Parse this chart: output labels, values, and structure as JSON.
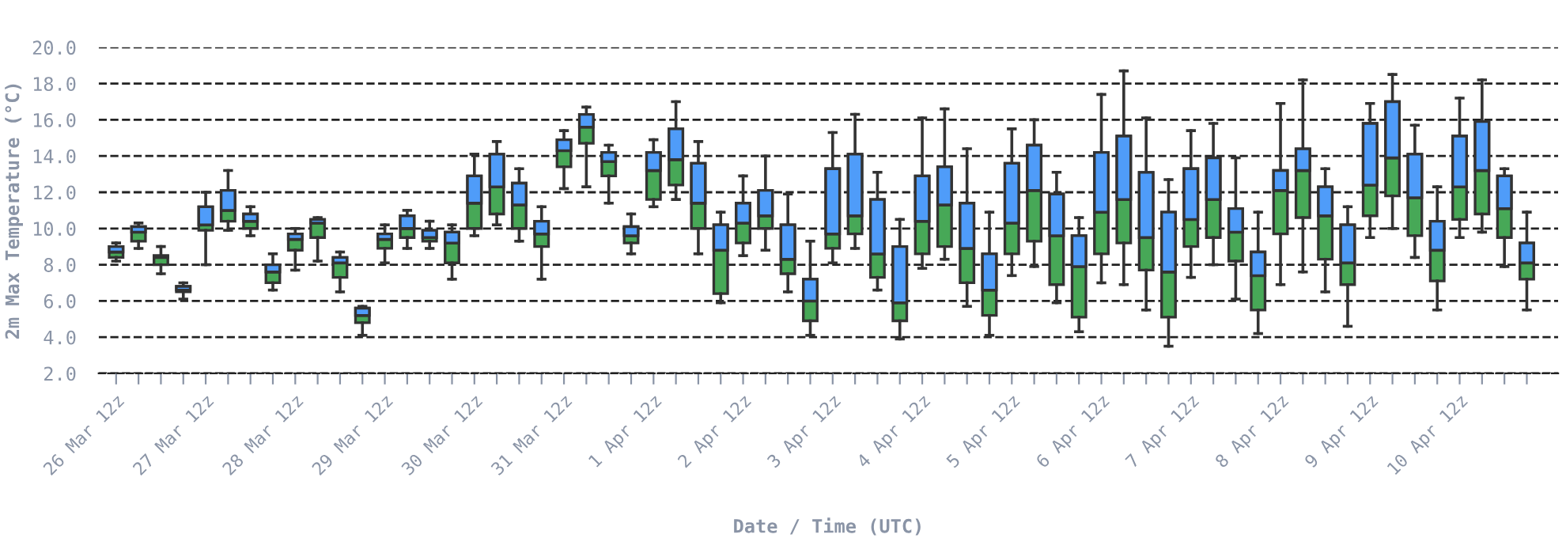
{
  "chart_data": {
    "type": "box",
    "xlabel": "Date / Time (UTC)",
    "ylabel": "2m Max Temperature (°C)",
    "categories": [
      "26 Mar 12z",
      null,
      null,
      null,
      "27 Mar 12z",
      null,
      null,
      null,
      "28 Mar 12z",
      null,
      null,
      null,
      "29 Mar 12z",
      null,
      null,
      null,
      "30 Mar 12z",
      null,
      null,
      null,
      "31 Mar 12z",
      null,
      null,
      null,
      "1 Apr 12z",
      null,
      null,
      null,
      "2 Apr 12z",
      null,
      null,
      null,
      "3 Apr 12z",
      null,
      null,
      null,
      "4 Apr 12z",
      null,
      null,
      null,
      "5 Apr 12z",
      null,
      null,
      null,
      "6 Apr 12z",
      null,
      null,
      null,
      "7 Apr 12z",
      null,
      null,
      null,
      "8 Apr 12z",
      null,
      null,
      null,
      "9 Apr 12z",
      null,
      null,
      null,
      "10 Apr 12z",
      null,
      null,
      null
    ],
    "colors": [
      [
        "#47a857",
        "#4f9cf9"
      ],
      [
        "#47a857",
        "#4f9cf9"
      ],
      [
        "#47a857",
        "#4f9cf9"
      ],
      [
        "#47a857",
        "#4f9cf9"
      ],
      [
        "#47a857",
        "#4f9cf9"
      ],
      [
        "#47a857",
        "#4f9cf9"
      ],
      [
        "#47a857",
        "#4f9cf9"
      ],
      [
        "#47a857",
        "#4f9cf9"
      ],
      [
        "#47a857",
        "#4f9cf9"
      ],
      [
        "#47a857",
        "#4f9cf9"
      ],
      [
        "#47a857",
        "#4f9cf9"
      ],
      [
        "#47a857",
        "#4f9cf9"
      ],
      [
        "#47a857",
        "#4f9cf9"
      ],
      [
        "#47a857",
        "#4f9cf9"
      ],
      [
        "#47a857",
        "#4f9cf9"
      ],
      [
        "#47a857",
        "#4f9cf9"
      ],
      [
        "#47a857",
        "#4f9cf9"
      ],
      [
        "#47a857",
        "#4f9cf9"
      ],
      [
        "#47a857",
        "#4f9cf9"
      ],
      [
        "#47a857",
        "#4f9cf9"
      ],
      [
        "#47a857",
        "#4f9cf9"
      ],
      [
        "#47a857",
        "#4f9cf9"
      ],
      [
        "#47a857",
        "#4f9cf9"
      ],
      [
        "#47a857",
        "#4f9cf9"
      ],
      [
        "#47a857",
        "#4f9cf9"
      ],
      [
        "#47a857",
        "#4f9cf9"
      ],
      [
        "#47a857",
        "#4f9cf9"
      ],
      [
        "#47a857",
        "#4f9cf9"
      ],
      [
        "#47a857",
        "#4f9cf9"
      ],
      [
        "#47a857",
        "#4f9cf9"
      ],
      [
        "#47a857",
        "#4f9cf9"
      ],
      [
        "#47a857",
        "#4f9cf9"
      ],
      [
        "#47a857",
        "#4f9cf9"
      ],
      [
        "#47a857",
        "#4f9cf9"
      ],
      [
        "#47a857",
        "#4f9cf9"
      ],
      [
        "#47a857",
        "#4f9cf9"
      ],
      [
        "#47a857",
        "#4f9cf9"
      ],
      [
        "#47a857",
        "#4f9cf9"
      ],
      [
        "#47a857",
        "#4f9cf9"
      ],
      [
        "#47a857",
        "#4f9cf9"
      ],
      [
        "#47a857",
        "#4f9cf9"
      ],
      [
        "#47a857",
        "#4f9cf9"
      ],
      [
        "#47a857",
        "#4f9cf9"
      ],
      [
        "#47a857",
        "#4f9cf9"
      ],
      [
        "#47a857",
        "#4f9cf9"
      ],
      [
        "#47a857",
        "#4f9cf9"
      ],
      [
        "#47a857",
        "#4f9cf9"
      ],
      [
        "#47a857",
        "#4f9cf9"
      ],
      [
        "#47a857",
        "#4f9cf9"
      ],
      [
        "#47a857",
        "#4f9cf9"
      ],
      [
        "#47a857",
        "#4f9cf9"
      ],
      [
        "#47a857",
        "#4f9cf9"
      ],
      [
        "#47a857",
        "#4f9cf9"
      ],
      [
        "#47a857",
        "#4f9cf9"
      ],
      [
        "#47a857",
        "#4f9cf9"
      ],
      [
        "#47a857",
        "#4f9cf9"
      ],
      [
        "#47a857",
        "#4f9cf9"
      ],
      [
        "#47a857",
        "#4f9cf9"
      ],
      [
        "#47a857",
        "#4f9cf9"
      ],
      [
        "#47a857",
        "#4f9cf9"
      ],
      [
        "#47a857",
        "#4f9cf9"
      ],
      [
        "#47a857",
        "#4f9cf9"
      ],
      [
        "#47a857",
        "#4f9cf9"
      ],
      [
        "#47a857",
        "#4f9cf9"
      ]
    ],
    "ylim": [
      2,
      20
    ],
    "yticks": [
      {
        "value": 2,
        "label": "2.0"
      },
      {
        "value": 4,
        "label": "4.0"
      },
      {
        "value": 6,
        "label": "6.0"
      },
      {
        "value": 8,
        "label": "8.0"
      },
      {
        "value": 10,
        "label": "10.0"
      },
      {
        "value": 12,
        "label": "12.0"
      },
      {
        "value": 14,
        "label": "14.0"
      },
      {
        "value": 16,
        "label": "16.0"
      },
      {
        "value": 18,
        "label": "18.0"
      },
      {
        "value": 20,
        "label": "20.0"
      }
    ],
    "grid": "y",
    "line_style": "dashed",
    "legend": false,
    "boxes": [
      {
        "low": 8.2,
        "q1": 8.4,
        "median": 8.7,
        "q3": 9.0,
        "high": 9.2
      },
      {
        "low": 8.9,
        "q1": 9.3,
        "median": 9.8,
        "q3": 10.1,
        "high": 10.3
      },
      {
        "low": 7.5,
        "q1": 8.0,
        "median": 8.4,
        "q3": 8.5,
        "high": 9.0
      },
      {
        "low": 6.1,
        "q1": 6.5,
        "median": 6.6,
        "q3": 6.8,
        "high": 7.0
      },
      {
        "low": 8.0,
        "q1": 9.9,
        "median": 10.2,
        "q3": 11.2,
        "high": 12.0
      },
      {
        "low": 9.9,
        "q1": 10.4,
        "median": 11.0,
        "q3": 12.1,
        "high": 13.2
      },
      {
        "low": 9.6,
        "q1": 10.0,
        "median": 10.4,
        "q3": 10.8,
        "high": 11.2
      },
      {
        "low": 6.6,
        "q1": 7.0,
        "median": 7.6,
        "q3": 8.0,
        "high": 8.6
      },
      {
        "low": 7.7,
        "q1": 8.8,
        "median": 9.4,
        "q3": 9.7,
        "high": 10.0
      },
      {
        "low": 8.2,
        "q1": 9.5,
        "median": 10.3,
        "q3": 10.5,
        "high": 10.6
      },
      {
        "low": 6.5,
        "q1": 7.3,
        "median": 8.1,
        "q3": 8.4,
        "high": 8.7
      },
      {
        "low": 4.1,
        "q1": 4.8,
        "median": 5.2,
        "q3": 5.6,
        "high": 5.7
      },
      {
        "low": 8.1,
        "q1": 8.9,
        "median": 9.4,
        "q3": 9.7,
        "high": 10.2
      },
      {
        "low": 8.9,
        "q1": 9.5,
        "median": 10.0,
        "q3": 10.7,
        "high": 11.0
      },
      {
        "low": 8.9,
        "q1": 9.3,
        "median": 9.5,
        "q3": 9.9,
        "high": 10.4
      },
      {
        "low": 7.2,
        "q1": 8.1,
        "median": 9.2,
        "q3": 9.8,
        "high": 10.2
      },
      {
        "low": 9.6,
        "q1": 10.0,
        "median": 11.4,
        "q3": 12.9,
        "high": 14.1
      },
      {
        "low": 10.2,
        "q1": 10.8,
        "median": 12.3,
        "q3": 14.1,
        "high": 14.8
      },
      {
        "low": 9.3,
        "q1": 10.0,
        "median": 11.3,
        "q3": 12.5,
        "high": 13.3
      },
      {
        "low": 7.2,
        "q1": 9.0,
        "median": 9.7,
        "q3": 10.4,
        "high": 11.2
      },
      {
        "low": 12.2,
        "q1": 13.4,
        "median": 14.3,
        "q3": 14.9,
        "high": 15.4
      },
      {
        "low": 12.3,
        "q1": 14.7,
        "median": 15.6,
        "q3": 16.3,
        "high": 16.7
      },
      {
        "low": 11.4,
        "q1": 12.9,
        "median": 13.7,
        "q3": 14.2,
        "high": 14.6
      },
      {
        "low": 8.6,
        "q1": 9.2,
        "median": 9.6,
        "q3": 10.1,
        "high": 10.8
      },
      {
        "low": 11.2,
        "q1": 11.6,
        "median": 13.2,
        "q3": 14.2,
        "high": 14.9
      },
      {
        "low": 11.6,
        "q1": 12.4,
        "median": 13.8,
        "q3": 15.5,
        "high": 17.0
      },
      {
        "low": 8.6,
        "q1": 10.0,
        "median": 11.4,
        "q3": 13.6,
        "high": 14.8
      },
      {
        "low": 5.9,
        "q1": 6.4,
        "median": 8.8,
        "q3": 10.2,
        "high": 10.9
      },
      {
        "low": 8.5,
        "q1": 9.2,
        "median": 10.3,
        "q3": 11.4,
        "high": 12.9
      },
      {
        "low": 8.8,
        "q1": 10.0,
        "median": 10.7,
        "q3": 12.1,
        "high": 14.0
      },
      {
        "low": 6.5,
        "q1": 7.5,
        "median": 8.3,
        "q3": 10.2,
        "high": 11.9
      },
      {
        "low": 4.1,
        "q1": 4.9,
        "median": 6.0,
        "q3": 7.2,
        "high": 9.3
      },
      {
        "low": 8.1,
        "q1": 8.9,
        "median": 9.7,
        "q3": 13.3,
        "high": 15.3
      },
      {
        "low": 8.9,
        "q1": 9.7,
        "median": 10.7,
        "q3": 14.1,
        "high": 16.3
      },
      {
        "low": 6.6,
        "q1": 7.3,
        "median": 8.6,
        "q3": 11.6,
        "high": 13.1
      },
      {
        "low": 3.9,
        "q1": 4.9,
        "median": 5.9,
        "q3": 9.0,
        "high": 10.5
      },
      {
        "low": 7.8,
        "q1": 8.6,
        "median": 10.4,
        "q3": 12.9,
        "high": 16.1
      },
      {
        "low": 8.3,
        "q1": 9.0,
        "median": 11.3,
        "q3": 13.4,
        "high": 16.6
      },
      {
        "low": 5.7,
        "q1": 7.0,
        "median": 8.9,
        "q3": 11.4,
        "high": 14.4
      },
      {
        "low": 4.1,
        "q1": 5.2,
        "median": 6.6,
        "q3": 8.6,
        "high": 10.9
      },
      {
        "low": 7.4,
        "q1": 8.6,
        "median": 10.3,
        "q3": 13.6,
        "high": 15.5
      },
      {
        "low": 7.9,
        "q1": 9.3,
        "median": 12.1,
        "q3": 14.6,
        "high": 16.0
      },
      {
        "low": 5.9,
        "q1": 6.9,
        "median": 9.6,
        "q3": 11.9,
        "high": 13.1
      },
      {
        "low": 4.3,
        "q1": 5.1,
        "median": 7.9,
        "q3": 9.6,
        "high": 10.6
      },
      {
        "low": 7.0,
        "q1": 8.6,
        "median": 10.9,
        "q3": 14.2,
        "high": 17.4
      },
      {
        "low": 6.9,
        "q1": 9.2,
        "median": 11.6,
        "q3": 15.1,
        "high": 18.7
      },
      {
        "low": 5.5,
        "q1": 7.7,
        "median": 9.5,
        "q3": 13.1,
        "high": 16.1
      },
      {
        "low": 3.5,
        "q1": 5.1,
        "median": 7.6,
        "q3": 10.9,
        "high": 12.7
      },
      {
        "low": 7.3,
        "q1": 9.0,
        "median": 10.5,
        "q3": 13.3,
        "high": 15.4
      },
      {
        "low": 8.0,
        "q1": 9.5,
        "median": 11.6,
        "q3": 13.9,
        "high": 15.8
      },
      {
        "low": 6.1,
        "q1": 8.2,
        "median": 9.8,
        "q3": 11.1,
        "high": 13.9
      },
      {
        "low": 4.2,
        "q1": 5.5,
        "median": 7.4,
        "q3": 8.7,
        "high": 10.9
      },
      {
        "low": 6.9,
        "q1": 9.7,
        "median": 12.1,
        "q3": 13.2,
        "high": 16.9
      },
      {
        "low": 7.6,
        "q1": 10.6,
        "median": 13.2,
        "q3": 14.4,
        "high": 18.2
      },
      {
        "low": 6.5,
        "q1": 8.3,
        "median": 10.7,
        "q3": 12.3,
        "high": 13.3
      },
      {
        "low": 4.6,
        "q1": 6.9,
        "median": 8.1,
        "q3": 10.2,
        "high": 11.2
      },
      {
        "low": 9.5,
        "q1": 10.7,
        "median": 12.4,
        "q3": 15.8,
        "high": 16.9
      },
      {
        "low": 10.0,
        "q1": 11.8,
        "median": 13.9,
        "q3": 17.0,
        "high": 18.5
      },
      {
        "low": 8.4,
        "q1": 9.6,
        "median": 11.7,
        "q3": 14.1,
        "high": 15.7
      },
      {
        "low": 5.5,
        "q1": 7.1,
        "median": 8.8,
        "q3": 10.4,
        "high": 12.3
      },
      {
        "low": 9.5,
        "q1": 10.5,
        "median": 12.3,
        "q3": 15.1,
        "high": 17.2
      },
      {
        "low": 9.8,
        "q1": 10.8,
        "median": 13.2,
        "q3": 15.9,
        "high": 18.2
      },
      {
        "low": 7.9,
        "q1": 9.5,
        "median": 11.1,
        "q3": 12.9,
        "high": 13.3
      },
      {
        "low": 5.5,
        "q1": 7.2,
        "median": 8.1,
        "q3": 9.2,
        "high": 10.9
      }
    ]
  }
}
